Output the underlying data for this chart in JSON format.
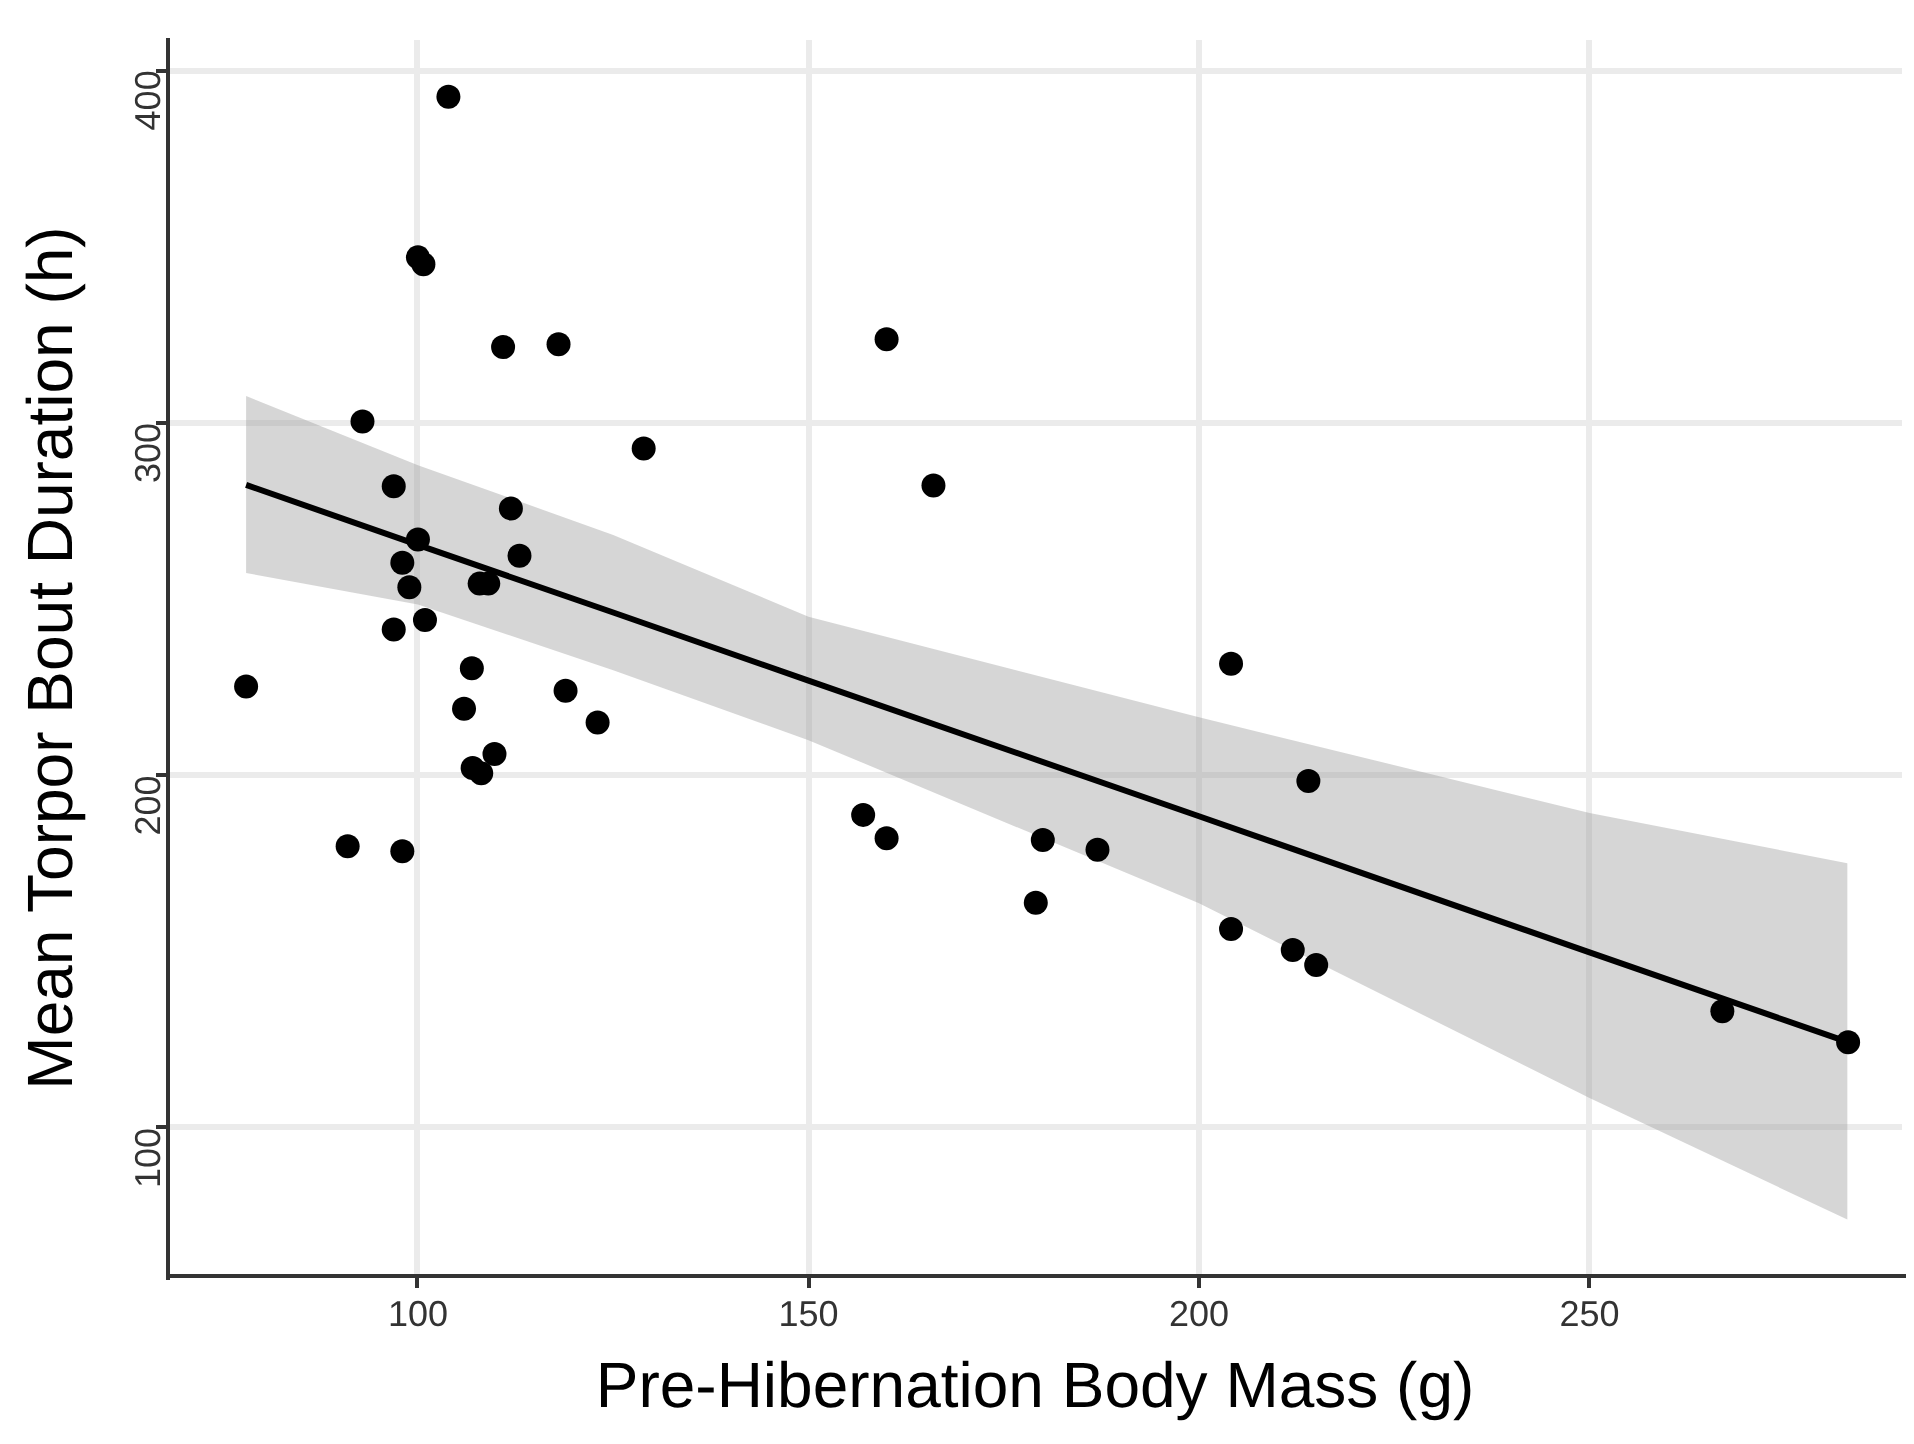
{
  "chart_data": {
    "type": "scatter",
    "xlabel": "Pre-Hibernation Body Mass (g)",
    "ylabel": "Mean Torpor Bout Duration (h)",
    "xlim": [
      68,
      290
    ],
    "ylim": [
      58,
      408.6
    ],
    "xticks": [
      100,
      150,
      200,
      250
    ],
    "yticks": [
      100,
      200,
      300,
      400
    ],
    "grid": true,
    "legend": false,
    "series": [
      {
        "color": "#000000",
        "marker": "circle",
        "x": [
          103.9,
          100,
          100.7,
          110.9,
          118,
          92.9,
          128.9,
          96.9,
          111.9,
          100,
          113,
          98,
          98.9,
          107.9,
          109,
          100.9,
          96.9,
          78,
          106.9,
          118.9,
          105.9,
          123,
          109.8,
          107,
          108.1,
          91,
          98,
          160,
          166,
          204.1,
          214,
          157,
          160,
          180,
          187,
          179.1,
          204.1,
          212,
          215,
          267,
          283.1
        ],
        "values": [
          392.5,
          347,
          345,
          321.5,
          322.3,
          300.4,
          292.7,
          282,
          275.7,
          266.9,
          262.3,
          260.3,
          253.4,
          254.4,
          254.4,
          244.1,
          241.4,
          225.2,
          230.4,
          224,
          218.9,
          215,
          206.1,
          202.1,
          200.6,
          179.9,
          178.5,
          323.7,
          282.2,
          231.7,
          198.4,
          188.8,
          182.2,
          181.7,
          178.9,
          163.9,
          156.4,
          150.5,
          146.2,
          133.1,
          124.3
        ]
      },
      {
        "type": "line",
        "color": "#000000",
        "x": [
          78,
          100,
          125,
          150,
          200,
          250,
          283
        ],
        "values": [
          282.4,
          265.4,
          246.2,
          226.9,
          188.4,
          149.8,
          124.4
        ],
        "lower": [
          257.4,
          248.5,
          229.8,
          210,
          163.7,
          108.5,
          74
        ],
        "upper": [
          307.6,
          288,
          268.2,
          245,
          216.5,
          189.3,
          175.1
        ]
      }
    ]
  }
}
